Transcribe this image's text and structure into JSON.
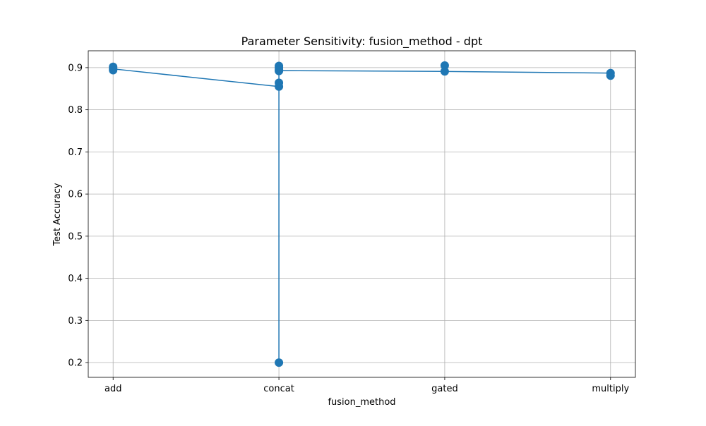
{
  "chart_data": {
    "type": "line",
    "title": "Parameter Sensitivity: fusion_method - dpt",
    "xlabel": "fusion_method",
    "ylabel": "Test Accuracy",
    "categories": [
      "add",
      "concat",
      "gated",
      "multiply"
    ],
    "y_ticks": [
      "0.2",
      "0.3",
      "0.4",
      "0.5",
      "0.6",
      "0.7",
      "0.8",
      "0.9"
    ],
    "ylim": [
      0.165,
      0.94
    ],
    "grid": true,
    "legend": "none",
    "series": [
      {
        "color": "#1f77b4",
        "mean_line": [
          {
            "x": "add",
            "y": 0.897
          },
          {
            "x": "concat",
            "y": 0.855
          },
          {
            "x": "gated",
            "y": 0.905
          },
          {
            "x": "multiply",
            "y": 0.887
          }
        ],
        "path": [
          {
            "x": "add",
            "y": 0.897
          },
          {
            "x": "concat",
            "y": 0.855
          },
          {
            "x": "concat",
            "y": 0.2
          },
          {
            "x": "concat",
            "y": 0.893
          },
          {
            "x": "gated",
            "y": 0.891
          },
          {
            "x": "multiply",
            "y": 0.887
          }
        ],
        "points": [
          {
            "x": "add",
            "y": 0.902
          },
          {
            "x": "add",
            "y": 0.898
          },
          {
            "x": "add",
            "y": 0.894
          },
          {
            "x": "concat",
            "y": 0.904
          },
          {
            "x": "concat",
            "y": 0.9
          },
          {
            "x": "concat",
            "y": 0.895
          },
          {
            "x": "concat",
            "y": 0.892
          },
          {
            "x": "concat",
            "y": 0.864
          },
          {
            "x": "concat",
            "y": 0.855
          },
          {
            "x": "concat",
            "y": 0.2
          },
          {
            "x": "gated",
            "y": 0.905
          },
          {
            "x": "gated",
            "y": 0.891
          },
          {
            "x": "multiply",
            "y": 0.887
          },
          {
            "x": "multiply",
            "y": 0.881
          }
        ]
      }
    ]
  }
}
